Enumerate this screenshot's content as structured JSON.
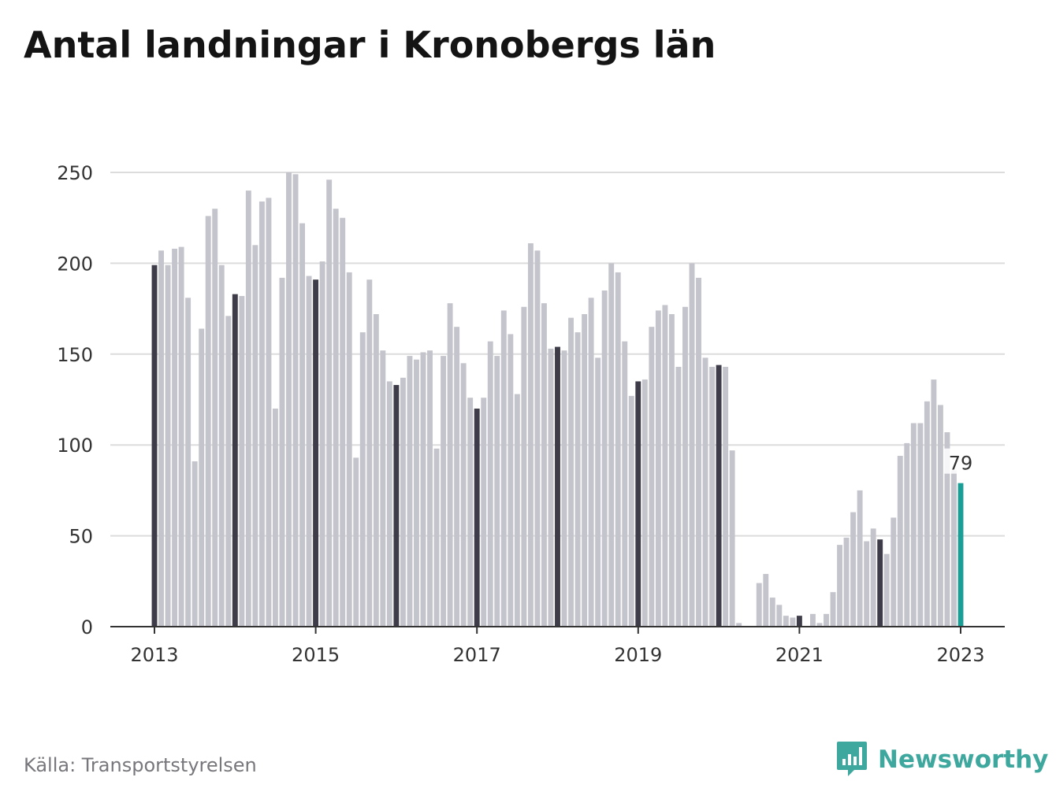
{
  "title": "Antal landningar i Kronobergs län",
  "source": "Källa: Transportstyrelsen",
  "brand": {
    "name": "Newsworthy",
    "icon": "newsworthy-logo-icon"
  },
  "colors": {
    "bar": "#c4c4cc",
    "january_bar": "#3d3c48",
    "highlight_bar": "#1a9e95",
    "grid": "#dcdcdc",
    "axis": "#333333",
    "brand": "#3ea79e"
  },
  "chart_data": {
    "type": "bar",
    "title": "Antal landningar i Kronobergs län",
    "xlabel": "",
    "ylabel": "",
    "ylim": [
      0,
      250
    ],
    "yticks": [
      0,
      50,
      100,
      150,
      200,
      250
    ],
    "xticks": [
      "2013",
      "2015",
      "2017",
      "2019",
      "2021",
      "2023"
    ],
    "grid": true,
    "start": "2013-01",
    "end": "2023-01",
    "frequency": "monthly",
    "values": [
      199,
      207,
      199,
      208,
      209,
      181,
      91,
      164,
      226,
      230,
      199,
      171,
      183,
      182,
      240,
      210,
      234,
      236,
      120,
      192,
      250,
      249,
      222,
      193,
      191,
      201,
      246,
      230,
      225,
      195,
      93,
      162,
      191,
      172,
      152,
      135,
      133,
      137,
      149,
      147,
      151,
      152,
      98,
      149,
      178,
      165,
      145,
      126,
      120,
      126,
      157,
      149,
      174,
      161,
      128,
      176,
      211,
      207,
      178,
      153,
      154,
      152,
      170,
      162,
      172,
      181,
      148,
      185,
      200,
      195,
      157,
      127,
      135,
      136,
      165,
      174,
      177,
      172,
      143,
      176,
      200,
      192,
      148,
      143,
      144,
      143,
      97,
      2,
      0,
      0,
      24,
      29,
      16,
      12,
      6,
      5,
      6,
      0,
      7,
      2,
      7,
      19,
      45,
      49,
      63,
      75,
      47,
      54,
      48,
      40,
      60,
      94,
      101,
      112,
      112,
      124,
      136,
      122,
      107,
      86,
      79
    ],
    "highlight": {
      "label": "79",
      "value": 79,
      "date": "2023-01"
    }
  }
}
